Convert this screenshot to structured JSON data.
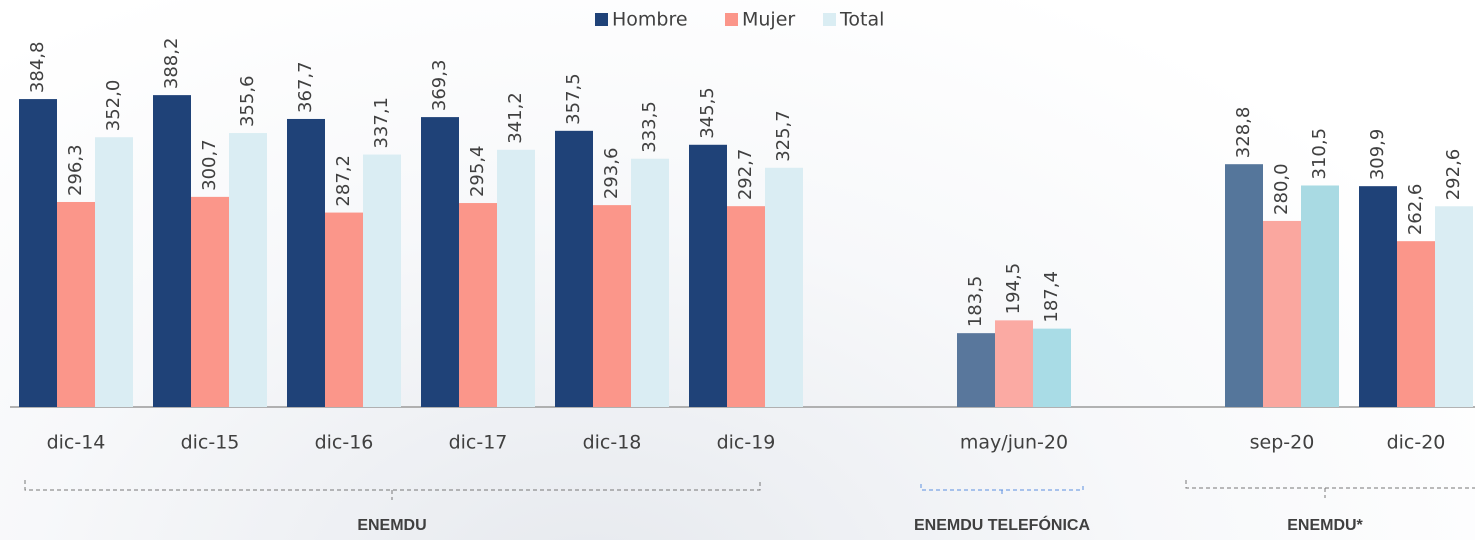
{
  "chart_data": {
    "type": "bar",
    "categories": [
      "dic-14",
      "dic-15",
      "dic-16",
      "dic-17",
      "dic-18",
      "dic-19",
      null,
      "may/jun-20",
      null,
      "sep-20",
      "dic-20"
    ],
    "series": [
      {
        "name": "Hombre",
        "color": "#1f4278",
        "colors": [
          "#1f4278",
          "#1f4278",
          "#1f4278",
          "#1f4278",
          "#1f4278",
          "#1f4278",
          null,
          "#59779c",
          null,
          "#55769b",
          "#1f4278"
        ],
        "values": [
          384.8,
          388.2,
          367.7,
          369.3,
          357.5,
          345.5,
          null,
          183.5,
          null,
          328.8,
          309.9
        ],
        "value_labels": [
          "384,8",
          "388,2",
          "367,7",
          "369,3",
          "357,5",
          "345,5",
          null,
          "183,5",
          null,
          "328,8",
          "309,9"
        ]
      },
      {
        "name": "Mujer",
        "color": "#fb968a",
        "colors": [
          "#fb968a",
          "#fb968a",
          "#fb968a",
          "#fb968a",
          "#fb968a",
          "#fb968a",
          null,
          "#fbaaa3",
          null,
          "#faa79f",
          "#fb968a"
        ],
        "values": [
          296.3,
          300.7,
          287.2,
          295.4,
          293.6,
          292.7,
          null,
          194.5,
          null,
          280.0,
          262.6
        ],
        "value_labels": [
          "296,3",
          "300,7",
          "287,2",
          "295,4",
          "293,6",
          "292,7",
          null,
          "194,5",
          null,
          "280,0",
          "262,6"
        ]
      },
      {
        "name": "Total",
        "color": "#daedf3",
        "colors": [
          "#daedf3",
          "#daedf3",
          "#daedf3",
          "#daedf3",
          "#daedf3",
          "#daedf3",
          null,
          "#a9dce6",
          null,
          "#a9dae3",
          "#daedf3"
        ],
        "values": [
          352.0,
          355.6,
          337.1,
          341.2,
          333.5,
          325.7,
          null,
          187.4,
          null,
          310.5,
          292.6
        ],
        "value_labels": [
          "352,0",
          "355,6",
          "337,1",
          "341,2",
          "333,5",
          "325,7",
          null,
          "187,4",
          null,
          "310,5",
          "292,6"
        ]
      }
    ],
    "ylim": [
      120,
      470
    ],
    "legend": "top",
    "annotations": [
      {
        "text": "ENEMDU",
        "color": "#404040"
      },
      {
        "text": "ENEMDU TELEFÓNICA",
        "color": "#5b8fe0"
      },
      {
        "text": "ENEMDU*",
        "color": "#404040"
      }
    ]
  }
}
